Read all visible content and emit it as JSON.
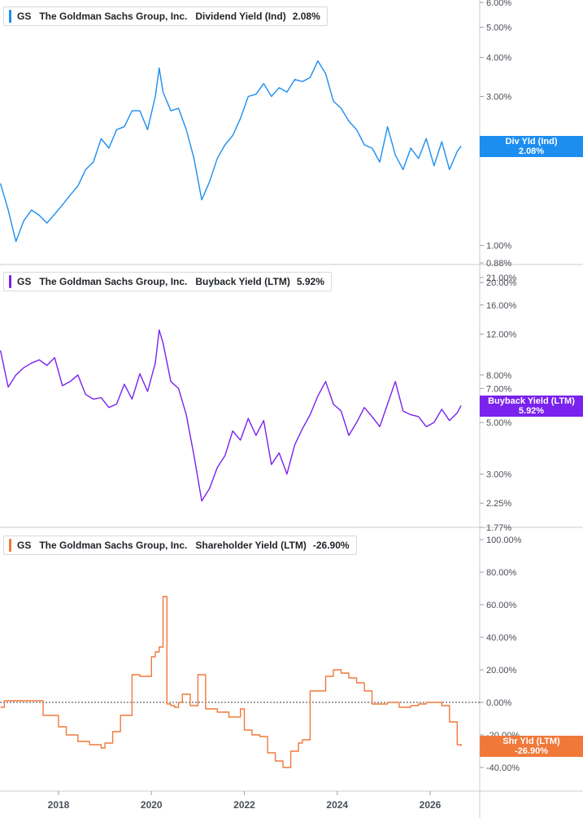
{
  "chart_data": [
    {
      "type": "line",
      "ticker": "GS",
      "company": "The Goldman Sachs Group, Inc.",
      "metric": "Dividend Yield (Ind)",
      "value": "2.08%",
      "tag": {
        "line1": "Div Yld (Ind)",
        "line2": "2.08%"
      },
      "color": "#1c8ef0",
      "scale": "log",
      "ylim": [
        0.88,
        6.0
      ],
      "yticks": [
        "6.00%",
        "5.00%",
        "4.00%",
        "3.00%",
        "2.00%",
        "1.00%",
        "0.88%"
      ],
      "ytick_values": [
        6.0,
        5.0,
        4.0,
        3.0,
        2.0,
        1.0,
        0.88
      ],
      "series": [
        {
          "x": [
            "2016-10",
            "2016-12",
            "2017-02",
            "2017-04",
            "2017-06",
            "2017-08",
            "2017-10",
            "2017-12",
            "2018-02",
            "2018-04",
            "2018-06",
            "2018-08",
            "2018-10",
            "2018-12",
            "2019-02",
            "2019-04",
            "2019-06",
            "2019-08",
            "2019-10",
            "2019-12",
            "2020-02",
            "2020-03",
            "2020-04",
            "2020-06",
            "2020-08",
            "2020-10",
            "2020-12",
            "2021-02",
            "2021-04",
            "2021-06",
            "2021-08",
            "2021-10",
            "2021-12",
            "2022-02",
            "2022-04",
            "2022-06",
            "2022-08",
            "2022-10",
            "2022-12",
            "2023-02",
            "2023-04",
            "2023-06",
            "2023-08",
            "2023-10",
            "2023-12",
            "2024-02",
            "2024-04",
            "2024-06",
            "2024-08",
            "2024-10",
            "2024-12",
            "2025-02",
            "2025-04",
            "2025-06",
            "2025-08",
            "2025-10",
            "2025-12",
            "2026-02",
            "2026-04",
            "2026-06",
            "2026-08",
            "2026-09"
          ],
          "y": [
            1.58,
            1.3,
            1.03,
            1.2,
            1.3,
            1.25,
            1.18,
            1.26,
            1.35,
            1.45,
            1.55,
            1.75,
            1.85,
            2.2,
            2.05,
            2.35,
            2.4,
            2.7,
            2.7,
            2.35,
            3.0,
            3.7,
            3.1,
            2.7,
            2.75,
            2.35,
            1.9,
            1.4,
            1.6,
            1.9,
            2.1,
            2.25,
            2.55,
            3.0,
            3.05,
            3.3,
            3.0,
            3.2,
            3.1,
            3.4,
            3.35,
            3.45,
            3.9,
            3.55,
            2.9,
            2.75,
            2.5,
            2.35,
            2.1,
            2.05,
            1.85,
            2.4,
            1.95,
            1.75,
            2.05,
            1.9,
            2.2,
            1.8,
            2.15,
            1.75,
            2.0,
            2.08
          ]
        }
      ]
    },
    {
      "type": "line",
      "ticker": "GS",
      "company": "The Goldman Sachs Group, Inc.",
      "metric": "Buyback Yield (LTM)",
      "value": "5.92%",
      "tag": {
        "line1": "Buyback Yield (LTM)",
        "line2": "5.92%"
      },
      "color": "#7a22ee",
      "scale": "log",
      "ylim": [
        1.77,
        21.0
      ],
      "yticks": [
        "21.00%",
        "20.00%",
        "16.00%",
        "12.00%",
        "8.00%",
        "7.00%",
        "5.00%",
        "3.00%",
        "2.25%",
        "1.77%"
      ],
      "ytick_values": [
        21.0,
        20.0,
        16.0,
        12.0,
        8.0,
        7.0,
        5.0,
        3.0,
        2.25,
        1.77
      ],
      "series": [
        {
          "x": [
            "2016-10",
            "2016-12",
            "2017-02",
            "2017-04",
            "2017-06",
            "2017-08",
            "2017-10",
            "2017-12",
            "2018-02",
            "2018-04",
            "2018-06",
            "2018-08",
            "2018-10",
            "2018-12",
            "2019-02",
            "2019-04",
            "2019-06",
            "2019-08",
            "2019-10",
            "2019-12",
            "2020-02",
            "2020-03",
            "2020-04",
            "2020-06",
            "2020-08",
            "2020-10",
            "2020-12",
            "2021-02",
            "2021-04",
            "2021-06",
            "2021-08",
            "2021-10",
            "2021-12",
            "2022-02",
            "2022-04",
            "2022-06",
            "2022-08",
            "2022-10",
            "2022-12",
            "2023-02",
            "2023-04",
            "2023-06",
            "2023-08",
            "2023-10",
            "2023-12",
            "2024-02",
            "2024-04",
            "2024-06",
            "2024-08",
            "2024-10",
            "2024-12",
            "2025-02",
            "2025-04",
            "2025-06",
            "2025-08",
            "2025-10",
            "2025-12",
            "2026-02",
            "2026-04",
            "2026-06",
            "2026-08",
            "2026-09"
          ],
          "y": [
            10.2,
            7.1,
            8.0,
            8.6,
            9.0,
            9.3,
            8.8,
            9.5,
            7.2,
            7.5,
            8.0,
            6.6,
            6.3,
            6.4,
            5.8,
            6.0,
            7.3,
            6.3,
            8.1,
            6.8,
            9.0,
            12.5,
            11.0,
            7.5,
            7.0,
            5.4,
            3.6,
            2.3,
            2.6,
            3.2,
            3.6,
            4.6,
            4.2,
            5.2,
            4.4,
            5.1,
            3.3,
            3.7,
            3.0,
            4.0,
            4.7,
            5.4,
            6.5,
            7.5,
            6.0,
            5.6,
            4.4,
            5.0,
            5.8,
            5.3,
            4.8,
            6.0,
            7.5,
            5.6,
            5.4,
            5.3,
            4.8,
            5.0,
            5.7,
            5.1,
            5.5,
            5.92
          ]
        }
      ]
    },
    {
      "type": "line",
      "ticker": "GS",
      "company": "The Goldman Sachs Group, Inc.",
      "metric": "Shareholder Yield (LTM)",
      "value": "-26.90%",
      "tag": {
        "line1": "Shr Yld (LTM)",
        "line2": "-26.90%"
      },
      "color": "#f0793a",
      "scale": "linear",
      "ylim": [
        -55,
        100
      ],
      "yticks": [
        "100.00%",
        "80.00%",
        "60.00%",
        "40.00%",
        "20.00%",
        "0.00%",
        "-20.00%",
        "-40.00%"
      ],
      "ytick_values": [
        100,
        80,
        60,
        40,
        20,
        0,
        -20,
        -40
      ],
      "zero_line": true,
      "series": [
        {
          "x": [
            "2016-10",
            "2016-11",
            "2017-06",
            "2017-08",
            "2017-09",
            "2018-01",
            "2018-03",
            "2018-06",
            "2018-09",
            "2018-12",
            "2019-01",
            "2019-03",
            "2019-05",
            "2019-08",
            "2019-10",
            "2019-12",
            "2020-01",
            "2020-02",
            "2020-03",
            "2020-04",
            "2020-05",
            "2020-06",
            "2020-07",
            "2020-08",
            "2020-09",
            "2020-11",
            "2021-01",
            "2021-03",
            "2021-06",
            "2021-09",
            "2021-12",
            "2022-01",
            "2022-03",
            "2022-05",
            "2022-07",
            "2022-09",
            "2022-11",
            "2023-01",
            "2023-03",
            "2023-04",
            "2023-06",
            "2023-08",
            "2023-10",
            "2023-12",
            "2024-02",
            "2024-04",
            "2024-06",
            "2024-08",
            "2024-10",
            "2024-12",
            "2025-02",
            "2025-04",
            "2025-05",
            "2025-06",
            "2025-08",
            "2025-10",
            "2025-12",
            "2026-02",
            "2026-03",
            "2026-04",
            "2026-06",
            "2026-07",
            "2026-08",
            "2026-09"
          ],
          "y": [
            -3,
            1,
            1,
            1,
            -8,
            -15,
            -20,
            -24,
            -26,
            -28,
            -25,
            -18,
            -8,
            17,
            16,
            16,
            28,
            31,
            34,
            65,
            -1,
            -2,
            -3,
            0,
            5,
            -2,
            17,
            -4,
            -6,
            -9,
            -4,
            -17,
            -20,
            -21,
            -31,
            -36,
            -40,
            -30,
            -25,
            -23,
            7,
            7,
            16,
            20,
            18,
            15,
            12,
            7,
            -1,
            -1,
            0,
            0,
            -3,
            -3,
            -2,
            -1,
            0,
            0,
            0,
            -2,
            -12,
            -12,
            -26,
            -26.9
          ]
        }
      ]
    }
  ],
  "x_axis": {
    "labels": [
      "2018",
      "2020",
      "2022",
      "2024",
      "2026"
    ],
    "tick_dates": [
      "2018-01",
      "2020-01",
      "2022-01",
      "2024-01",
      "2026-01"
    ]
  }
}
